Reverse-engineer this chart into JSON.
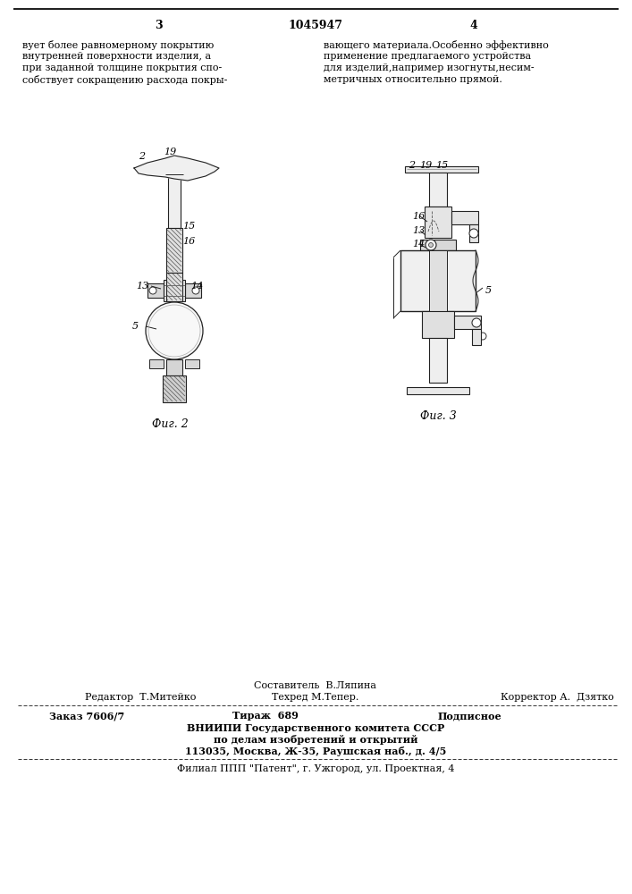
{
  "page_number_left": "3",
  "page_number_center": "1045947",
  "page_number_right": "4",
  "text_left": "вует более равномерному покрытию\nвнутренней поверхности изделия, а\nпри заданной толщине покрытия спо-\nсобствует сокращению расхода покры-",
  "text_right": "вающего материала.Особенно эффективно\nприменение предлагаемого устройства\nдля изделий,например изогнуты,несим-\nметричных относительно прямой.",
  "fig2_caption": "Фиг. 2",
  "fig3_caption": "Фиг. 3",
  "footer_sestavitel": "Составитель  В.Ляпина",
  "footer_redaktor": "Редактор  Т.Митейко",
  "footer_tehred": "Техред М.Тепер.",
  "footer_korrektor": "Корректор А.  Дзятко",
  "footer_zakaz": "Заказ 7606/7",
  "footer_tirazh": "Тираж  689",
  "footer_podpisnoe": "Подписное",
  "footer_vniip1": "ВНИИПИ Государственного комитета СССР",
  "footer_vniip2": "по делам изобретений и открытий",
  "footer_vniip3": "113035, Москва, Ж-35, Раушская наб., д. 4/5",
  "footer_filial": "Филиал ППП \"Патент\", г. Ужгород, ул. Проектная, 4",
  "bg_color": "#ffffff",
  "text_color": "#000000"
}
